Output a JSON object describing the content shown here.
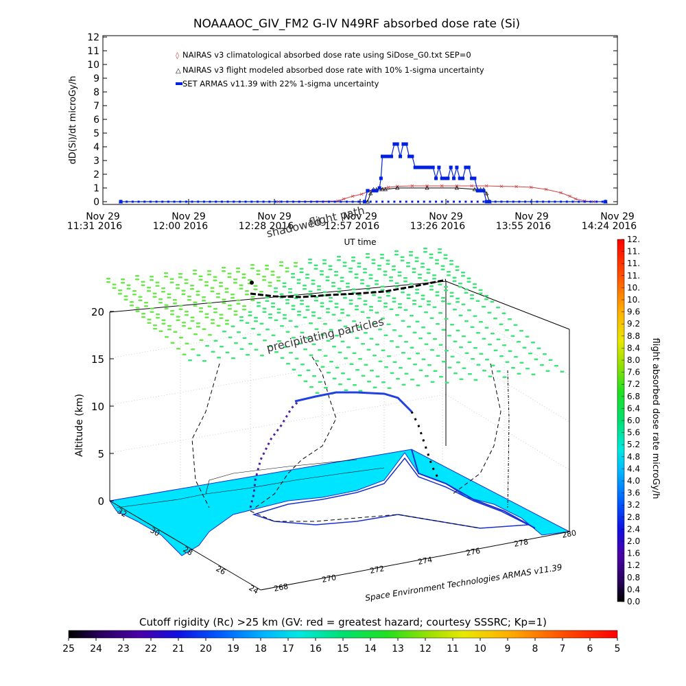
{
  "title": "NOAAAOC_GIV_FM2 G-IV   N49RF  absorbed dose rate (Si)",
  "top_panel": {
    "ylabel": "dD(Si)/dt microGy/h",
    "xlabel": "UT time",
    "yticks": [
      "0",
      "1",
      "2",
      "3",
      "4",
      "5",
      "6",
      "7",
      "8",
      "9",
      "10",
      "11",
      "12"
    ],
    "xticks": [
      {
        "date": "Nov 29",
        "time": "11:31 2016"
      },
      {
        "date": "Nov 29",
        "time": "12:00 2016"
      },
      {
        "date": "Nov 29",
        "time": "12:28 2016"
      },
      {
        "date": "Nov 29",
        "time": "12:57 2016"
      },
      {
        "date": "Nov 29",
        "time": "13:26 2016"
      },
      {
        "date": "Nov 29",
        "time": "13:55 2016"
      },
      {
        "date": "Nov 29",
        "time": "14:24 2016"
      }
    ],
    "legend": [
      {
        "label": "NAIRAS v3 climatological absorbed dose rate using SiDose_G0.txt SEP=0",
        "color": "#d04040"
      },
      {
        "label": "NAIRAS v3 flight modeled absorbed dose rate with 10% 1-sigma uncertainty",
        "color": "#000000"
      },
      {
        "label": "SET ARMAS v11.39 with 22% 1-sigma uncertainty",
        "color": "#0020e0"
      }
    ]
  },
  "chart_data": {
    "type": "line",
    "title": "NOAAAOC_GIV_FM2 G-IV   N49RF  absorbed dose rate (Si)",
    "xlabel": "UT time",
    "ylabel": "dD(Si)/dt microGy/h",
    "ylim": [
      0,
      12
    ],
    "xlim_minutes_of_day": [
      691,
      864
    ],
    "x_unit": "minutes after 00:00 UT on Nov 29 2016",
    "series": [
      {
        "name": "NAIRAS v3 climatological absorbed dose rate using SiDose_G0.txt SEP=0",
        "x": [
          697,
          750,
          770,
          772,
          775,
          778,
          781,
          784,
          787,
          790,
          795,
          800,
          805,
          810,
          815,
          820,
          825,
          830,
          835,
          840,
          845,
          848,
          850,
          853,
          856,
          860
        ],
        "values": [
          0.0,
          0.0,
          0.05,
          0.2,
          0.4,
          0.55,
          0.8,
          0.95,
          1.05,
          1.12,
          1.15,
          1.15,
          1.15,
          1.15,
          1.15,
          1.15,
          1.12,
          1.1,
          1.05,
          0.9,
          0.65,
          0.4,
          0.2,
          0.05,
          0.0,
          0.0
        ]
      },
      {
        "name": "NAIRAS v3 flight modeled absorbed dose rate with 10% 1-sigma uncertainty",
        "x": [
          697,
          780,
          781,
          782,
          783,
          784,
          785,
          786,
          790,
          800,
          810,
          816,
          817,
          818,
          819,
          820,
          821,
          860
        ],
        "values": [
          0.0,
          0.0,
          0.6,
          0.9,
          0.9,
          0.9,
          0.9,
          0.9,
          1.0,
          1.0,
          1.0,
          0.9,
          0.9,
          0.9,
          0.9,
          0.6,
          0.0,
          0.0
        ]
      },
      {
        "name": "SET ARMAS v11.39 with 22% 1-sigma uncertainty",
        "x": [
          697,
          779,
          780,
          782,
          783,
          784,
          784.5,
          785,
          786,
          787,
          788,
          789,
          790,
          791,
          792,
          793,
          794,
          795,
          796,
          797,
          798,
          799,
          800,
          801,
          802,
          803,
          804,
          805,
          806,
          807,
          808,
          809,
          810,
          811,
          812,
          813,
          814,
          815,
          816,
          817,
          818,
          819,
          820,
          821,
          860
        ],
        "values": [
          0.0,
          0.0,
          0.8,
          0.8,
          0.8,
          1.0,
          1.7,
          3.3,
          3.3,
          3.3,
          3.3,
          4.2,
          4.2,
          3.3,
          4.2,
          4.2,
          3.3,
          3.3,
          2.5,
          2.5,
          2.5,
          2.5,
          2.5,
          2.5,
          2.5,
          1.7,
          2.5,
          1.7,
          1.7,
          1.7,
          2.5,
          1.7,
          2.5,
          1.7,
          1.7,
          2.5,
          2.5,
          1.7,
          1.7,
          0.8,
          0.8,
          0.8,
          0.0,
          0.0,
          0.0
        ]
      }
    ]
  },
  "bottom_panel": {
    "ylabel": "Altitude (km)",
    "zticks": [
      "0",
      "5",
      "10",
      "15",
      "20"
    ],
    "lat_ticks": [
      "32",
      "30",
      "28",
      "26",
      "24"
    ],
    "lon_ticks": [
      "268",
      "270",
      "272",
      "274",
      "276",
      "278",
      "280"
    ],
    "annotations": {
      "shadowed": "shadowed",
      "flight_path": "flight path",
      "precipitating": "precipitating particles"
    },
    "credit": "Space Environment Technologies ARMAS v11.39"
  },
  "right_colorbar": {
    "label": "flight absorbed dose rate microGy/h",
    "ticks": [
      "0.0",
      "0.4",
      "0.8",
      "1.2",
      "1.6",
      "2.0",
      "2.4",
      "2.8",
      "3.2",
      "3.6",
      "4.0",
      "4.4",
      "4.8",
      "5.2",
      "5.6",
      "6.0",
      "6.4",
      "6.8",
      "7.2",
      "7.6",
      "8.0",
      "8.4",
      "8.8",
      "9.2",
      "9.6",
      "10.",
      "10.",
      "11.",
      "11.",
      "11.",
      "12."
    ]
  },
  "bottom_colorbar": {
    "label": "Cutoff rigidity (Rc) >25 km (GV: red = greatest hazard; courtesy SSSRC; Kp=1)",
    "ticks": [
      "25",
      "24",
      "23",
      "22",
      "21",
      "20",
      "19",
      "18",
      "17",
      "16",
      "15",
      "14",
      "13",
      "12",
      "11",
      "10",
      "9",
      "8",
      "7",
      "6",
      "5"
    ]
  },
  "colors": {
    "land": "#00e5ff",
    "ocean": "#ffffff",
    "coast": "#1a2fd0",
    "rigidity_cells": "#3ee67a",
    "rigidity_cells_2": "#6be84a"
  }
}
